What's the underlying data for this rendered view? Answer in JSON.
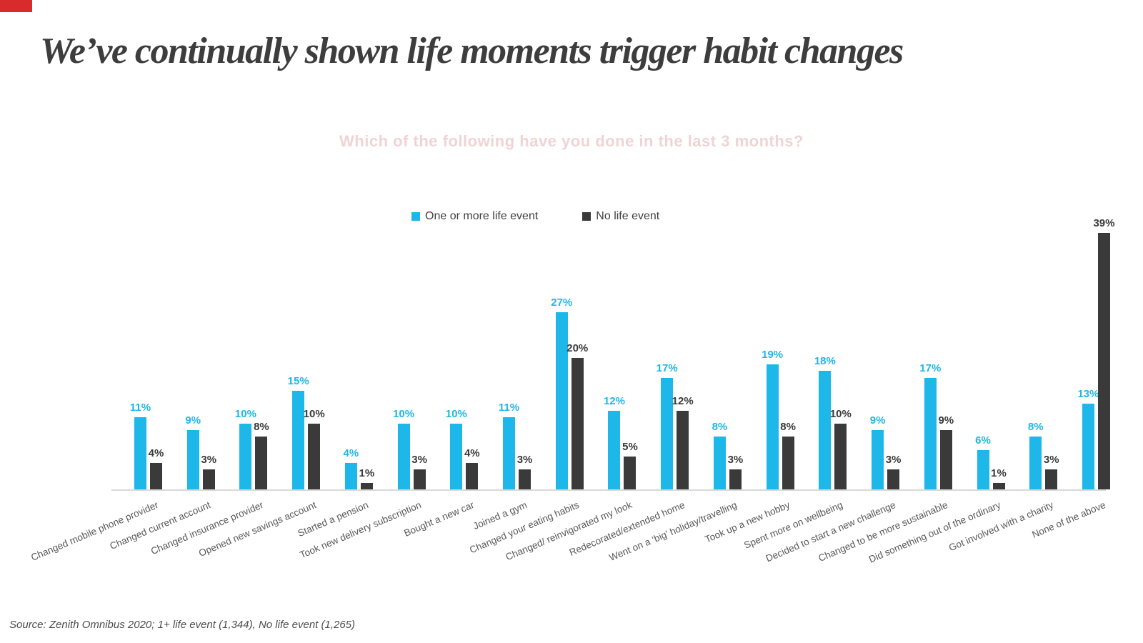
{
  "slide": {
    "title": "We’ve continually shown life moments trigger habit changes",
    "corner_mark_color": "#d92b2b",
    "source": "Source: Zenith Omnibus 2020; 1+ life event (1,344), No life event (1,265)"
  },
  "chart_data": {
    "type": "bar",
    "title": "Which of the following have you done in the last 3 months?",
    "title_color": "#f0d4d4",
    "legend_position": "top-center",
    "grid": false,
    "y_axis_visible": false,
    "ylim": [
      0,
      42
    ],
    "unit": "%",
    "axis_line_color": "#d9d9d9",
    "category_label_color": "#595959",
    "categories": [
      "Changed mobile phone provider",
      "Changed current account",
      "Changed insurance provider",
      "Opened new savings account",
      "Started a pension",
      "Took new delivery subscription",
      "Bought a new car",
      "Joined a gym",
      "Changed your eating habits",
      "Changed/ reinvigorated my look",
      "Redecorated/extended home",
      "Went on a ‘big’ holiday/travelling",
      "Took up a new hobby",
      "Spent more on wellbeing",
      "Decided to start a new challenge",
      "Changed to be more sustainable",
      "Did something out of the ordinary",
      "Got involved with a charity",
      "None of the above"
    ],
    "series": [
      {
        "name": "One or more life event",
        "color": "#1db7e9",
        "values": [
          11,
          9,
          10,
          15,
          4,
          10,
          10,
          11,
          27,
          12,
          17,
          8,
          19,
          18,
          9,
          17,
          6,
          8,
          13
        ]
      },
      {
        "name": "No life event",
        "color": "#3a3a3a",
        "values": [
          4,
          3,
          8,
          10,
          1,
          3,
          4,
          3,
          20,
          5,
          12,
          3,
          8,
          10,
          3,
          9,
          1,
          3,
          39
        ]
      }
    ],
    "data_labels": "shown above bars, formatted as percent"
  }
}
